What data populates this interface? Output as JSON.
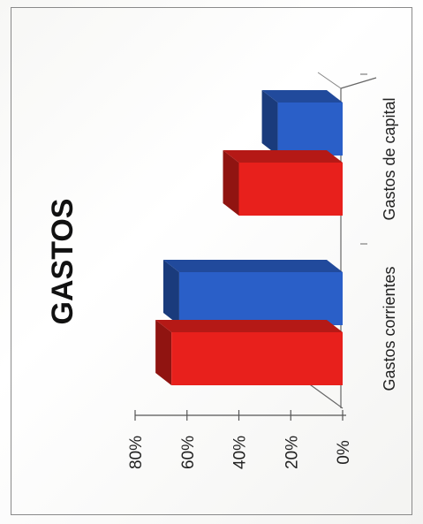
{
  "chart_data": {
    "type": "bar",
    "title": "GASTOS",
    "orientation": "rotated-90",
    "style": "3d-clustered",
    "categories": [
      "Gastos corrientes",
      "Gastos de capital"
    ],
    "series": [
      {
        "color": "#e8201c",
        "values": [
          66,
          40
        ]
      },
      {
        "color": "#2a5fc8",
        "values": [
          63,
          25
        ]
      }
    ],
    "ylim": [
      0,
      80
    ],
    "y_ticks": [
      "0%",
      "20%",
      "40%",
      "60%",
      "80%"
    ],
    "grid": false,
    "legend": "none"
  }
}
